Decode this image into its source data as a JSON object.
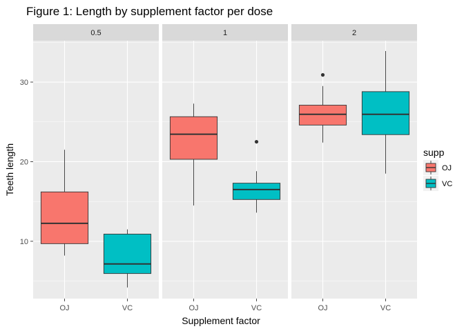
{
  "chart_data": {
    "type": "boxplot",
    "title": "Figure 1: Length by supplement factor per dose",
    "xlabel": "Supplement factor",
    "ylabel": "Teeth length",
    "ylim": [
      2.8,
      35.2
    ],
    "yticks": [
      10,
      20,
      30
    ],
    "categories": [
      "OJ",
      "VC"
    ],
    "legend": {
      "title": "supp",
      "position": "right",
      "entries": [
        {
          "label": "OJ",
          "color": "#F8766D"
        },
        {
          "label": "VC",
          "color": "#00BFC4"
        }
      ]
    },
    "panels": [
      {
        "label": "0.5",
        "boxes": [
          {
            "group": "OJ",
            "min": 8.2,
            "q1": 9.7,
            "median": 12.25,
            "q3": 16.2,
            "max": 21.5,
            "outliers": []
          },
          {
            "group": "VC",
            "min": 4.2,
            "q1": 5.95,
            "median": 7.15,
            "q3": 10.9,
            "max": 11.5,
            "outliers": []
          }
        ]
      },
      {
        "label": "1",
        "boxes": [
          {
            "group": "OJ",
            "min": 14.5,
            "q1": 20.3,
            "median": 23.45,
            "q3": 25.65,
            "max": 27.3,
            "outliers": []
          },
          {
            "group": "VC",
            "min": 13.6,
            "q1": 15.25,
            "median": 16.5,
            "q3": 17.3,
            "max": 18.8,
            "outliers": [
              22.5
            ]
          }
        ]
      },
      {
        "label": "2",
        "boxes": [
          {
            "group": "OJ",
            "min": 22.4,
            "q1": 24.6,
            "median": 25.95,
            "q3": 27.1,
            "max": 29.5,
            "outliers": [
              30.9
            ]
          },
          {
            "group": "VC",
            "min": 18.5,
            "q1": 23.4,
            "median": 25.95,
            "q3": 28.8,
            "max": 33.9,
            "outliers": []
          }
        ]
      }
    ],
    "colors": {
      "panel_bg": "#EBEBEB",
      "strip_bg": "#D9D9D9",
      "grid": "#FFFFFF",
      "box_line": "#333333"
    }
  }
}
